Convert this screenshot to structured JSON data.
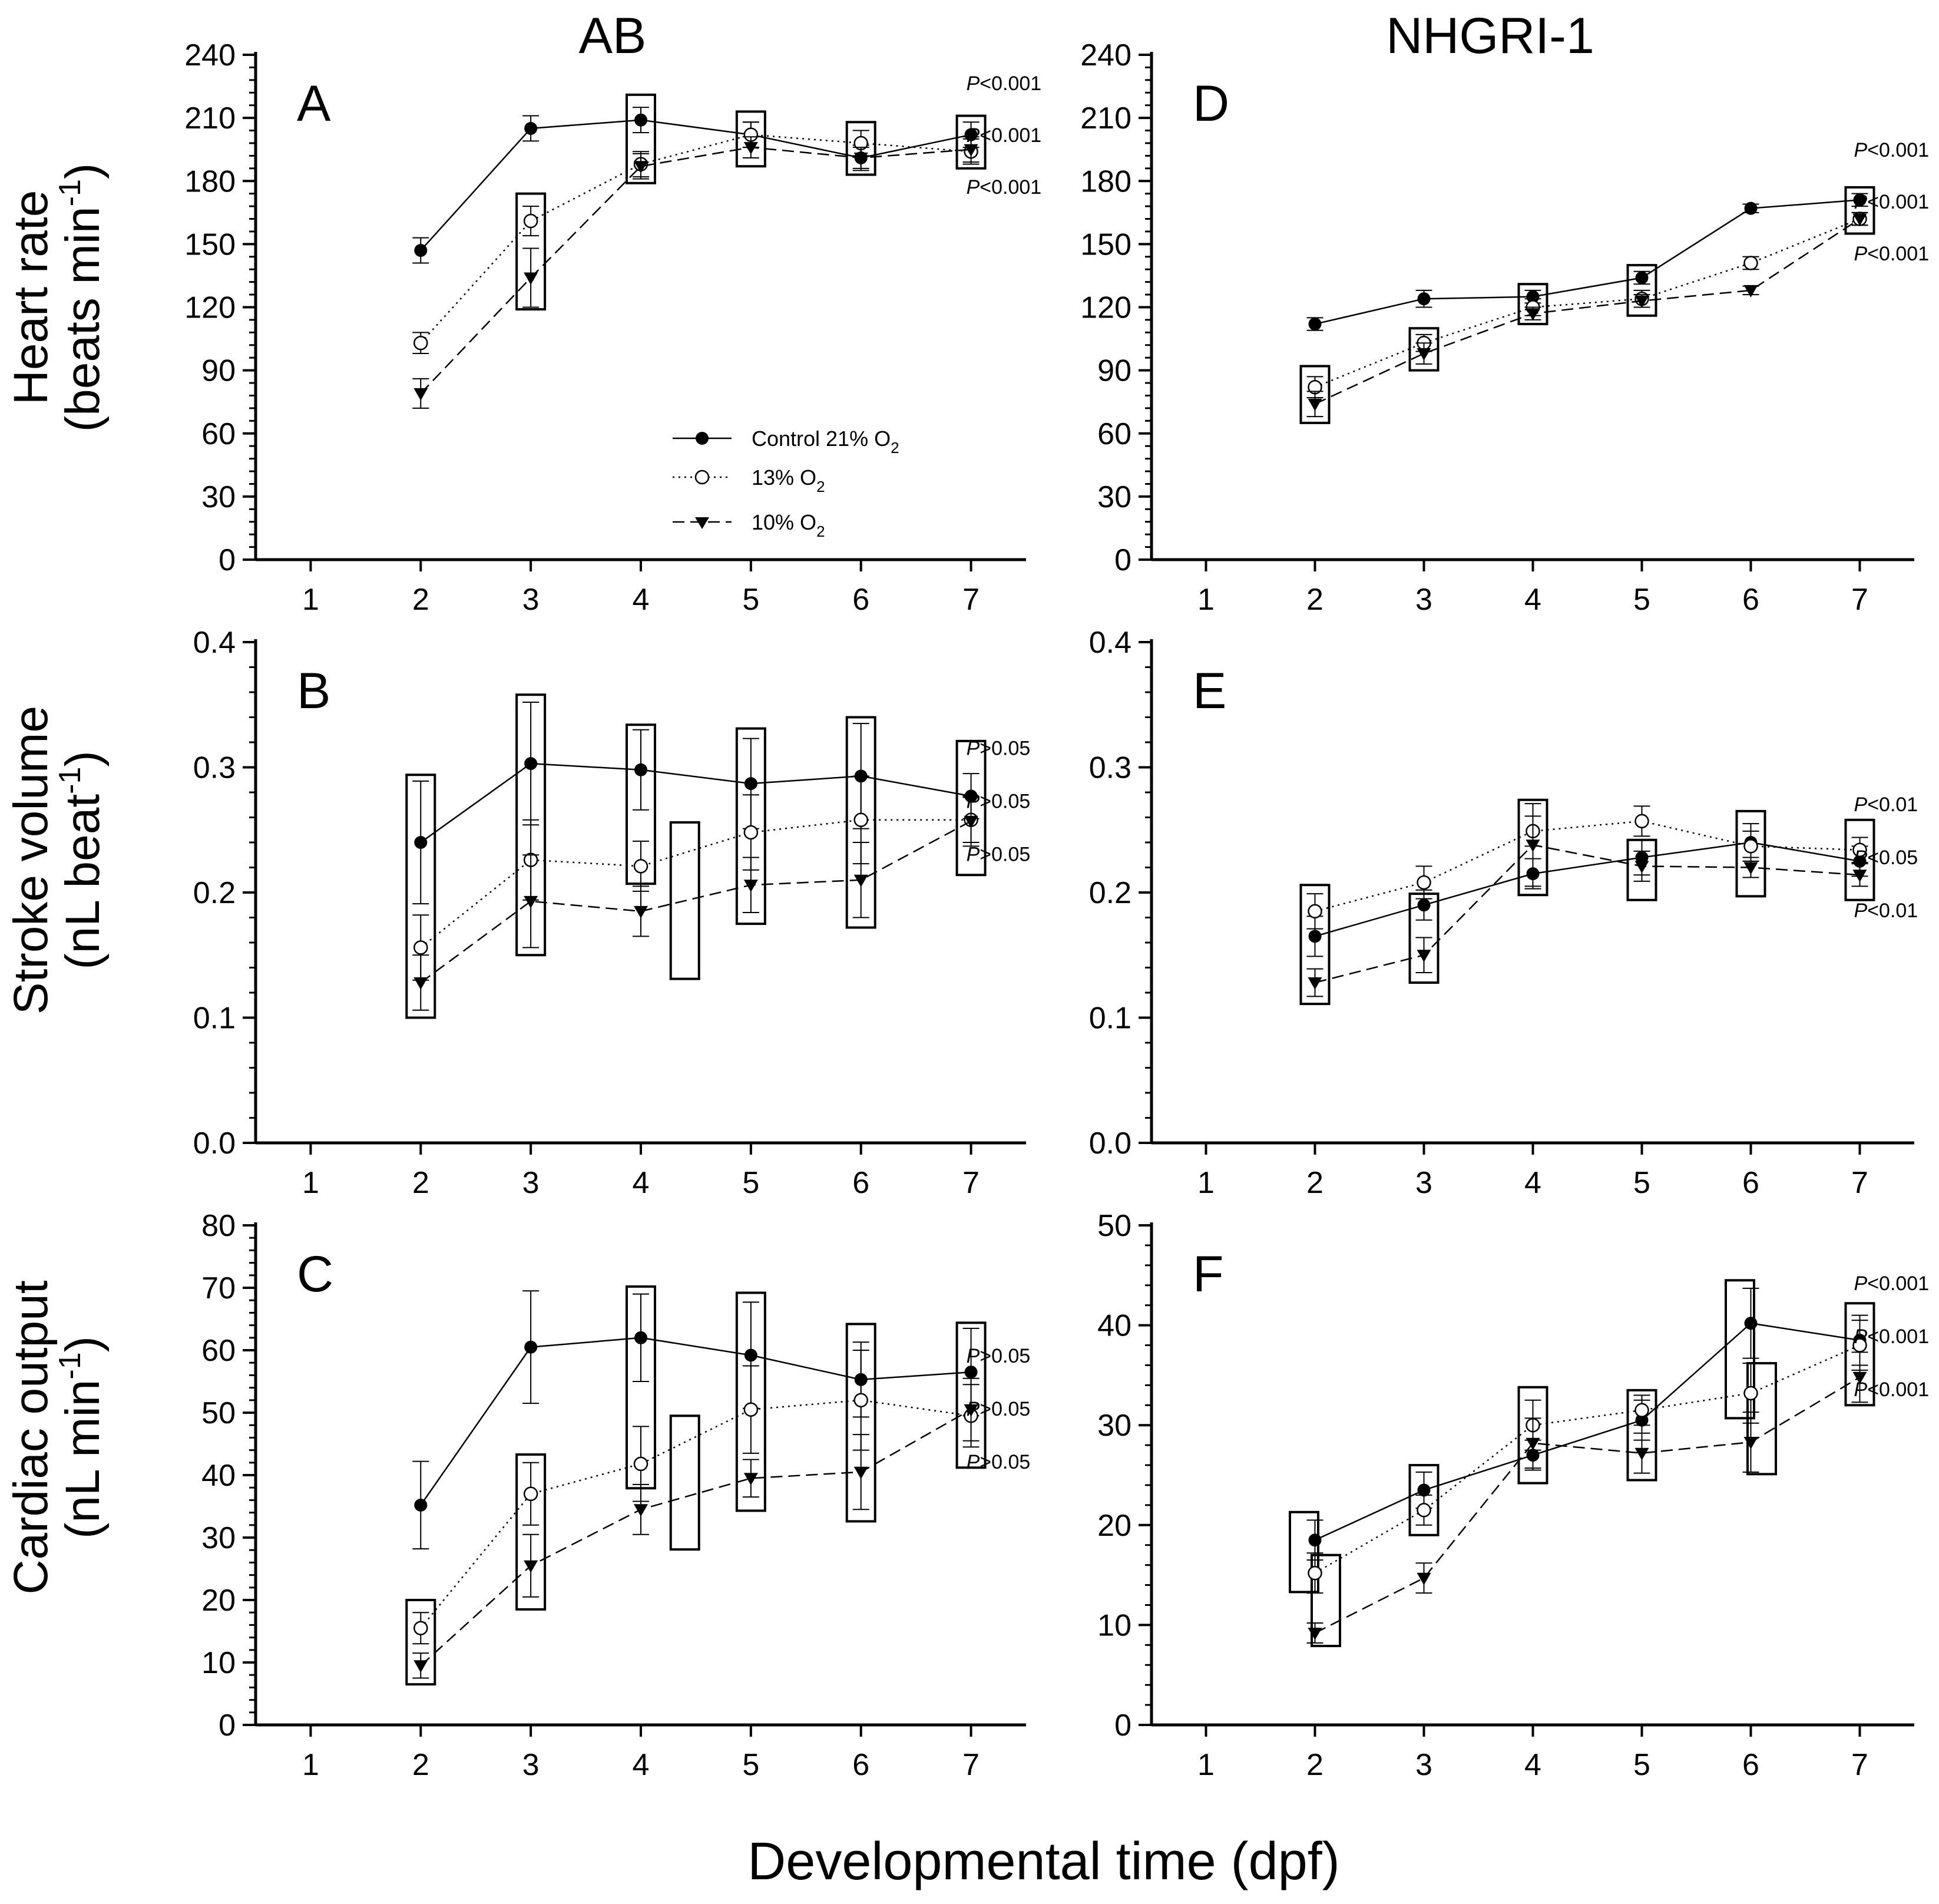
{
  "figure": {
    "col_titles": [
      "AB",
      "NHGRI-1"
    ],
    "xlabel": "Developmental time (dpf)",
    "ylabels": [
      {
        "main": "Heart rate",
        "sub_pre": "(beats min",
        "sup": "-1",
        "sub_post": ")"
      },
      {
        "main": "Stroke volume",
        "sub_pre": "(nL beat",
        "sup": "-1",
        "sub_post": ")"
      },
      {
        "main": "Cardiac output",
        "sub_pre": "(nL min",
        "sup": "-1",
        "sub_post": ")"
      }
    ],
    "legend": [
      {
        "label": "Control 21% O",
        "sub": "2",
        "marker": "filled-circle",
        "dash": "solid"
      },
      {
        "label": "13% O",
        "sub": "2",
        "marker": "open-circle",
        "dash": "dotted"
      },
      {
        "label": "10% O",
        "sub": "2",
        "marker": "filled-triangle-down",
        "dash": "dashed"
      }
    ]
  },
  "chart_data": [
    {
      "panel": "A",
      "type": "line",
      "group": "AB",
      "ylabel": "Heart rate (beats min-1)",
      "x": [
        1,
        2,
        3,
        4,
        5,
        6,
        7
      ],
      "xlim": [
        0.5,
        7.5
      ],
      "ylim": [
        0,
        240
      ],
      "yticks": [
        "0",
        "30",
        "60",
        "90",
        "120",
        "150",
        "180",
        "210",
        "240"
      ],
      "series": [
        {
          "name": "Control 21% O2",
          "x": [
            2,
            3,
            4,
            5,
            6,
            7
          ],
          "values": [
            147,
            205,
            209,
            202,
            191,
            202
          ],
          "err": [
            6,
            6,
            6,
            6,
            6,
            6
          ]
        },
        {
          "name": "13% O2",
          "x": [
            2,
            3,
            4,
            5,
            6,
            7
          ],
          "values": [
            103,
            161,
            188,
            202,
            198,
            194
          ],
          "err": [
            5,
            7,
            6,
            6,
            6,
            6
          ]
        },
        {
          "name": "10% O2",
          "x": [
            2,
            3,
            4,
            5,
            6,
            7
          ],
          "values": [
            79,
            134,
            187,
            196,
            191,
            195
          ],
          "err": [
            7,
            14,
            6,
            5,
            5,
            6
          ]
        }
      ],
      "boxes": [
        {
          "x": 3,
          "y0": 119,
          "y1": 174
        },
        {
          "x": 4,
          "y0": 179,
          "y1": 221
        },
        {
          "x": 5,
          "y0": 187,
          "y1": 213
        },
        {
          "x": 6,
          "y0": 183,
          "y1": 208
        },
        {
          "x": 7,
          "y0": 186,
          "y1": 211
        }
      ],
      "pvalues": [
        "P<0.001",
        "P<0.001",
        "P<0.001"
      ]
    },
    {
      "panel": "B",
      "type": "line",
      "group": "AB",
      "ylabel": "Stroke volume (nL beat-1)",
      "x": [
        1,
        2,
        3,
        4,
        5,
        6,
        7
      ],
      "xlim": [
        0.5,
        7.5
      ],
      "ylim": [
        0,
        0.4
      ],
      "yticks": [
        "0.0",
        "0.1",
        "0.2",
        "0.3",
        "0.4"
      ],
      "series": [
        {
          "name": "Control 21% O2",
          "x": [
            2,
            3,
            4,
            5,
            6,
            7
          ],
          "values": [
            0.24,
            0.303,
            0.298,
            0.287,
            0.293,
            0.277
          ],
          "err": [
            0.049,
            0.049,
            0.032,
            0.036,
            0.042,
            0.018
          ]
        },
        {
          "name": "13% O2",
          "x": [
            2,
            3,
            4,
            5,
            6,
            7
          ],
          "values": [
            0.156,
            0.226,
            0.221,
            0.248,
            0.258,
            0.258
          ],
          "err": [
            0.026,
            0.032,
            0.02,
            0.03,
            0.035,
            0.018
          ]
        },
        {
          "name": "10% O2",
          "x": [
            2,
            3,
            4,
            5,
            6,
            7
          ],
          "values": [
            0.128,
            0.193,
            0.185,
            0.206,
            0.21,
            0.257
          ],
          "err": [
            0.022,
            0.037,
            0.02,
            0.022,
            0.03,
            0.02
          ]
        }
      ],
      "boxes": [
        {
          "x": 2,
          "y0": 0.1,
          "y1": 0.294
        },
        {
          "x": 3,
          "y0": 0.15,
          "y1": 0.358
        },
        {
          "x": 4,
          "y0": 0.207,
          "y1": 0.334
        },
        {
          "x": 4.4,
          "y0": 0.131,
          "y1": 0.256
        },
        {
          "x": 5,
          "y0": 0.175,
          "y1": 0.331
        },
        {
          "x": 6,
          "y0": 0.172,
          "y1": 0.34
        },
        {
          "x": 7,
          "y0": 0.214,
          "y1": 0.321
        }
      ],
      "pvalues": [
        "P>0.05",
        "P>0.05",
        "P>0.05"
      ]
    },
    {
      "panel": "C",
      "type": "line",
      "group": "AB",
      "ylabel": "Cardiac output (nL min-1)",
      "x": [
        1,
        2,
        3,
        4,
        5,
        6,
        7
      ],
      "xlim": [
        0.5,
        7.5
      ],
      "ylim": [
        0,
        80
      ],
      "yticks": [
        "0",
        "10",
        "20",
        "30",
        "40",
        "50",
        "60",
        "70",
        "80"
      ],
      "series": [
        {
          "name": "Control 21% O2",
          "x": [
            2,
            3,
            4,
            5,
            6,
            7
          ],
          "values": [
            35.2,
            60.5,
            62.0,
            59.2,
            55.3,
            56.5
          ],
          "err": [
            7,
            9,
            7,
            8.5,
            6,
            7
          ]
        },
        {
          "name": "13% O2",
          "x": [
            2,
            3,
            4,
            5,
            6,
            7
          ],
          "values": [
            15.5,
            37.0,
            41.8,
            50.5,
            52.0,
            49.5
          ],
          "err": [
            2.5,
            5,
            6,
            7,
            8,
            5
          ]
        },
        {
          "name": "10% O2",
          "x": [
            2,
            3,
            4,
            5,
            6,
            7
          ],
          "values": [
            9.5,
            25.5,
            34.5,
            39.5,
            40.5,
            50.5
          ],
          "err": [
            2,
            5,
            4,
            3,
            6,
            5
          ]
        }
      ],
      "boxes": [
        {
          "x": 2,
          "y0": 6.5,
          "y1": 20
        },
        {
          "x": 3,
          "y0": 18.5,
          "y1": 43.3
        },
        {
          "x": 4,
          "y0": 37.9,
          "y1": 70.2
        },
        {
          "x": 4.4,
          "y0": 28.1,
          "y1": 49.5
        },
        {
          "x": 5,
          "y0": 34.3,
          "y1": 69.2
        },
        {
          "x": 6,
          "y0": 32.6,
          "y1": 64.2
        },
        {
          "x": 7,
          "y0": 41.2,
          "y1": 64.4
        }
      ],
      "pvalues": [
        "P>0.05",
        "P>0.05",
        "P>0.05"
      ]
    },
    {
      "panel": "D",
      "type": "line",
      "group": "NHGRI-1",
      "ylabel": "Heart rate (beats min-1)",
      "x": [
        1,
        2,
        3,
        4,
        5,
        6,
        7
      ],
      "xlim": [
        0.5,
        7.5
      ],
      "ylim": [
        0,
        240
      ],
      "yticks": [
        "0",
        "30",
        "60",
        "90",
        "120",
        "150",
        "180",
        "210",
        "240"
      ],
      "series": [
        {
          "name": "Control 21% O2",
          "x": [
            2,
            3,
            4,
            5,
            6,
            7
          ],
          "values": [
            112,
            124,
            125,
            134,
            167,
            171
          ],
          "err": [
            3,
            4,
            3,
            3,
            2,
            3
          ]
        },
        {
          "name": "13% O2",
          "x": [
            2,
            3,
            4,
            5,
            6,
            7
          ],
          "values": [
            82,
            103,
            120,
            124,
            141,
            162
          ],
          "err": [
            5,
            4,
            4,
            4,
            3,
            3
          ]
        },
        {
          "name": "10% O2",
          "x": [
            2,
            3,
            4,
            5,
            6,
            7
          ],
          "values": [
            74,
            98,
            117,
            123,
            128,
            162
          ],
          "err": [
            6,
            5,
            3,
            3,
            2,
            3
          ]
        }
      ],
      "boxes": [
        {
          "x": 2,
          "y0": 65,
          "y1": 92
        },
        {
          "x": 3,
          "y0": 90,
          "y1": 110
        },
        {
          "x": 4,
          "y0": 112,
          "y1": 131
        },
        {
          "x": 5,
          "y0": 116,
          "y1": 140
        },
        {
          "x": 7,
          "y0": 155,
          "y1": 177
        }
      ],
      "pvalues": [
        "P<0.001",
        "P<0.001",
        "P<0.001"
      ]
    },
    {
      "panel": "E",
      "type": "line",
      "group": "NHGRI-1",
      "ylabel": "Stroke volume (nL beat-1)",
      "x": [
        1,
        2,
        3,
        4,
        5,
        6,
        7
      ],
      "xlim": [
        0.5,
        7.5
      ],
      "ylim": [
        0,
        0.4
      ],
      "yticks": [
        "0.0",
        "0.1",
        "0.2",
        "0.3",
        "0.4"
      ],
      "series": [
        {
          "name": "Control 21% O2",
          "x": [
            2,
            3,
            4,
            5,
            6,
            7
          ],
          "values": [
            0.165,
            0.19,
            0.215,
            0.228,
            0.24,
            0.225
          ],
          "err": [
            0.016,
            0.012,
            0.012,
            0.014,
            0.015,
            0.012
          ]
        },
        {
          "name": "13% O2",
          "x": [
            2,
            3,
            4,
            5,
            6,
            7
          ],
          "values": [
            0.185,
            0.208,
            0.249,
            0.257,
            0.237,
            0.234
          ],
          "err": [
            0.014,
            0.013,
            0.012,
            0.012,
            0.012,
            0.01
          ]
        },
        {
          "name": "10% O2",
          "x": [
            2,
            3,
            4,
            5,
            6,
            7
          ],
          "values": [
            0.128,
            0.15,
            0.238,
            0.221,
            0.22,
            0.214
          ],
          "err": [
            0.011,
            0.014,
            0.033,
            0.012,
            0.008,
            0.009
          ]
        }
      ],
      "boxes": [
        {
          "x": 2,
          "y0": 0.111,
          "y1": 0.206
        },
        {
          "x": 3,
          "y0": 0.128,
          "y1": 0.199
        },
        {
          "x": 4,
          "y0": 0.198,
          "y1": 0.274
        },
        {
          "x": 5,
          "y0": 0.194,
          "y1": 0.242
        },
        {
          "x": 6,
          "y0": 0.197,
          "y1": 0.265
        },
        {
          "x": 7,
          "y0": 0.194,
          "y1": 0.258
        }
      ],
      "pvalues": [
        "P<0.01",
        "P<0.05",
        "P<0.01"
      ]
    },
    {
      "panel": "F",
      "type": "line",
      "group": "NHGRI-1",
      "ylabel": "Cardiac output (nL min-1)",
      "x": [
        1,
        2,
        3,
        4,
        5,
        6,
        7
      ],
      "xlim": [
        0.5,
        7.5
      ],
      "ylim": [
        0,
        50
      ],
      "yticks": [
        "0",
        "10",
        "20",
        "30",
        "40",
        "50"
      ],
      "series": [
        {
          "name": "Control 21% O2",
          "x": [
            2,
            3,
            4,
            5,
            6,
            7
          ],
          "values": [
            18.5,
            23.5,
            27.0,
            30.5,
            40.2,
            38.5
          ],
          "err": [
            2,
            1.8,
            1.5,
            2,
            3.5,
            2.5
          ]
        },
        {
          "name": "13% O2",
          "x": [
            2,
            3,
            4,
            5,
            6,
            7
          ],
          "values": [
            15.2,
            21.5,
            30.0,
            31.5,
            33.2,
            38.0
          ],
          "err": [
            2,
            1.5,
            2.5,
            1.5,
            3,
            2.5
          ]
        },
        {
          "name": "10% O2",
          "x": [
            2,
            3,
            4,
            5,
            6,
            7
          ],
          "values": [
            9.2,
            14.7,
            28.2,
            27.2,
            28.3,
            34.8
          ],
          "err": [
            1,
            1.5,
            2.5,
            2,
            3,
            2.5
          ]
        }
      ],
      "boxes": [
        {
          "x": 1.9,
          "y0": 13.3,
          "y1": 21.3
        },
        {
          "x": 2.1,
          "y0": 7.9,
          "y1": 17.0
        },
        {
          "x": 3,
          "y0": 19.0,
          "y1": 26.0
        },
        {
          "x": 4,
          "y0": 24.2,
          "y1": 33.8
        },
        {
          "x": 5,
          "y0": 24.5,
          "y1": 33.5
        },
        {
          "x": 5.9,
          "y0": 30.7,
          "y1": 44.5
        },
        {
          "x": 6.1,
          "y0": 25.1,
          "y1": 36.2
        },
        {
          "x": 7,
          "y0": 32.0,
          "y1": 42.2
        }
      ],
      "pvalues": [
        "P<0.001",
        "P<0.001",
        "P<0.001"
      ]
    }
  ]
}
